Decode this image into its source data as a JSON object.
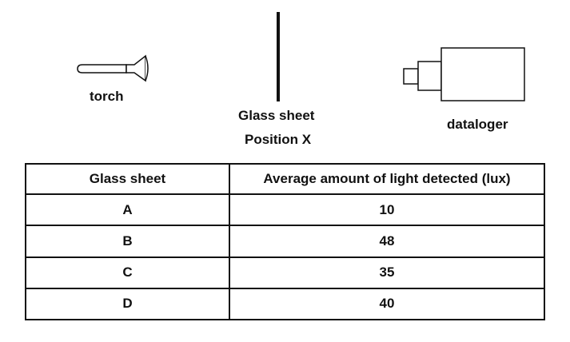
{
  "labels": {
    "torch": "torch",
    "glass_sheet": "Glass sheet",
    "position_x": "Position X",
    "datalogger": "dataloger"
  },
  "table": {
    "headers": [
      "Glass sheet",
      "Average amount of light detected (lux)"
    ],
    "rows": [
      {
        "sheet": "A",
        "lux": "10"
      },
      {
        "sheet": "B",
        "lux": "48"
      },
      {
        "sheet": "C",
        "lux": "35"
      },
      {
        "sheet": "D",
        "lux": "40"
      }
    ]
  }
}
